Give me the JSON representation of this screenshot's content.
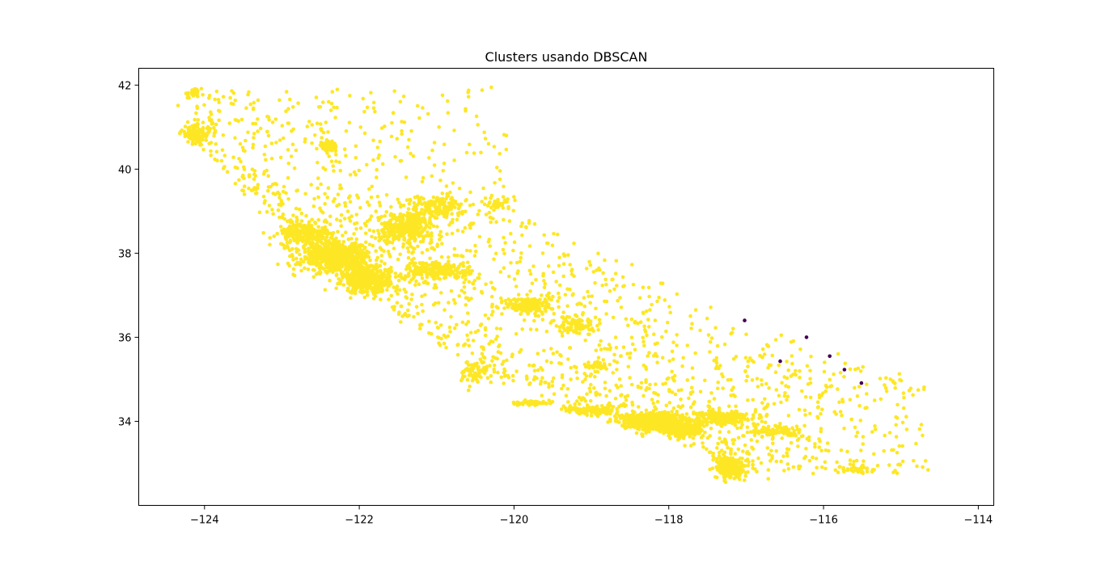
{
  "chart_data": {
    "type": "scatter",
    "title": "Clusters usando DBSCAN",
    "xlabel": "",
    "ylabel": "",
    "xlim": [
      -124.85,
      -113.8
    ],
    "ylim": [
      32.0,
      42.4
    ],
    "xticks": [
      -124,
      -122,
      -120,
      -118,
      -116,
      -114
    ],
    "xtick_labels": [
      "−124",
      "−122",
      "−120",
      "−118",
      "−116",
      "−114"
    ],
    "yticks": [
      34,
      36,
      38,
      40,
      42
    ],
    "ytick_labels": [
      "34",
      "36",
      "38",
      "40",
      "42"
    ],
    "grid": false,
    "legend": "none",
    "colors": {
      "cluster_0": "#fde725",
      "noise": "#440154"
    },
    "series": [
      {
        "cluster": 0,
        "color": "#fde725",
        "dense_regions": [
          {
            "lon": -124.1,
            "lat": 40.85,
            "spread": [
              0.2,
              0.25
            ],
            "n": 120
          },
          {
            "lon": -124.15,
            "lat": 41.8,
            "spread": [
              0.12,
              0.08
            ],
            "n": 25
          },
          {
            "lon": -122.4,
            "lat": 40.55,
            "spread": [
              0.12,
              0.12
            ],
            "n": 70
          },
          {
            "lon": -122.3,
            "lat": 37.9,
            "spread": [
              0.45,
              0.35
            ],
            "n": 650
          },
          {
            "lon": -121.9,
            "lat": 37.35,
            "spread": [
              0.3,
              0.3
            ],
            "n": 400
          },
          {
            "lon": -122.7,
            "lat": 38.45,
            "spread": [
              0.35,
              0.25
            ],
            "n": 200
          },
          {
            "lon": -121.4,
            "lat": 38.6,
            "spread": [
              0.35,
              0.35
            ],
            "n": 320
          },
          {
            "lon": -121.0,
            "lat": 39.1,
            "spread": [
              0.35,
              0.3
            ],
            "n": 150
          },
          {
            "lon": -121.0,
            "lat": 37.6,
            "spread": [
              0.4,
              0.25
            ],
            "n": 200
          },
          {
            "lon": -119.8,
            "lat": 36.75,
            "spread": [
              0.3,
              0.2
            ],
            "n": 180
          },
          {
            "lon": -119.2,
            "lat": 36.3,
            "spread": [
              0.25,
              0.2
            ],
            "n": 80
          },
          {
            "lon": -118.2,
            "lat": 34.0,
            "spread": [
              0.4,
              0.2
            ],
            "n": 650
          },
          {
            "lon": -117.8,
            "lat": 33.8,
            "spread": [
              0.25,
              0.15
            ],
            "n": 250
          },
          {
            "lon": -117.2,
            "lat": 32.9,
            "spread": [
              0.18,
              0.25
            ],
            "n": 300
          },
          {
            "lon": -117.3,
            "lat": 34.1,
            "spread": [
              0.3,
              0.15
            ],
            "n": 200
          },
          {
            "lon": -119.0,
            "lat": 34.25,
            "spread": [
              0.35,
              0.1
            ],
            "n": 120
          },
          {
            "lon": -119.75,
            "lat": 34.43,
            "spread": [
              0.25,
              0.05
            ],
            "n": 60
          },
          {
            "lon": -120.5,
            "lat": 35.2,
            "spread": [
              0.2,
              0.3
            ],
            "n": 80
          },
          {
            "lon": -115.6,
            "lat": 32.85,
            "spread": [
              0.25,
              0.1
            ],
            "n": 40
          },
          {
            "lon": -116.6,
            "lat": 33.75,
            "spread": [
              0.35,
              0.15
            ],
            "n": 90
          },
          {
            "lon": -118.9,
            "lat": 35.35,
            "spread": [
              0.15,
              0.1
            ],
            "n": 35
          },
          {
            "lon": -120.2,
            "lat": 39.2,
            "spread": [
              0.15,
              0.2
            ],
            "n": 40
          }
        ]
      },
      {
        "cluster": "noise",
        "color": "#440154",
        "points": [
          [
            -117.02,
            36.4
          ],
          [
            -116.22,
            36.0
          ],
          [
            -116.56,
            35.43
          ],
          [
            -115.92,
            35.55
          ],
          [
            -115.73,
            35.23
          ],
          [
            -115.51,
            34.91
          ]
        ]
      }
    ]
  }
}
